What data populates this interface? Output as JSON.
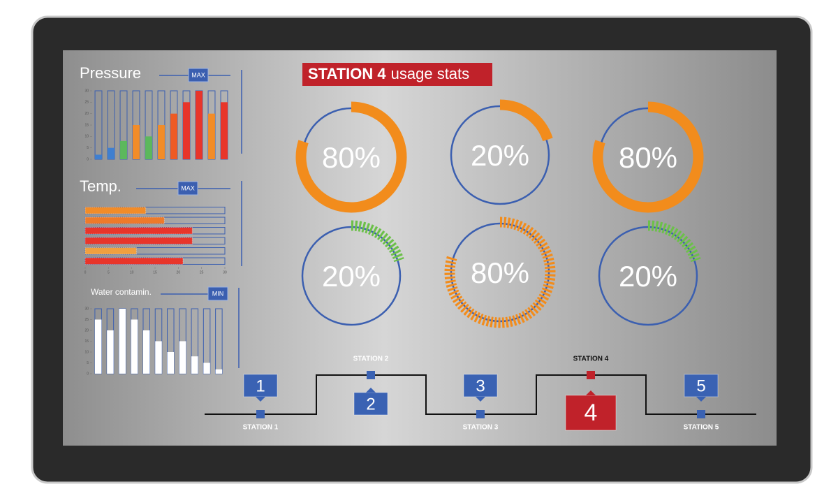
{
  "chart_data": [
    {
      "type": "bar",
      "title": "Pressure",
      "badge": "MAX",
      "categories": [
        null,
        null,
        null,
        null,
        null,
        null,
        null,
        null,
        null,
        null,
        null
      ],
      "values": [
        2,
        5,
        8,
        15,
        10,
        15,
        20,
        25,
        30,
        20,
        25
      ],
      "colors": [
        "#3f7fd0",
        "#3f7fd0",
        "#5cb85c",
        "#f28c28",
        "#5cb85c",
        "#f28c28",
        "#ee5a24",
        "#e8352a",
        "#e8352a",
        "#f28c28",
        "#e8352a"
      ],
      "ylim": [
        0,
        30
      ],
      "yticks": [
        0,
        5,
        10,
        15,
        20,
        25,
        30
      ]
    },
    {
      "type": "bar",
      "orientation": "horizontal",
      "title": "Temp.",
      "badge": "MAX",
      "categories": [
        null,
        null,
        null,
        null,
        null,
        null
      ],
      "values": [
        13,
        17,
        23,
        23,
        11,
        21
      ],
      "colors": [
        "#f28c28",
        "#ee7a2a",
        "#e8352a",
        "#e8352a",
        "#f0a040",
        "#e8352a"
      ],
      "xlim": [
        0,
        30
      ],
      "xticks": [
        0,
        5,
        10,
        15,
        20,
        25,
        30
      ]
    },
    {
      "type": "bar",
      "title": "Water contamin.",
      "badge": "MIN",
      "categories": [
        null,
        null,
        null,
        null,
        null,
        null,
        null,
        null,
        null,
        null,
        null
      ],
      "values": [
        25,
        20,
        30,
        25,
        20,
        15,
        10,
        15,
        8,
        5,
        2
      ],
      "color": "#ffffff",
      "ylim": [
        0,
        30
      ],
      "yticks": [
        0,
        5,
        10,
        15,
        20,
        25,
        30
      ]
    },
    {
      "type": "donut",
      "values": [
        80,
        20,
        80,
        20,
        80,
        20
      ],
      "value_labels": [
        "80%",
        "20%",
        "80%",
        "20%",
        "80%",
        "20%"
      ],
      "colors": [
        "#f28c1c",
        "#f28c1c",
        "#f28c1c",
        "#6cc04a",
        "#f28c1c",
        "#6cc04a"
      ],
      "segmented": [
        false,
        false,
        false,
        true,
        true,
        true
      ]
    }
  ],
  "header": {
    "title_bold": "STATION 4",
    "title_rest": "usage stats"
  },
  "stations": [
    {
      "number": "1",
      "label": "STATION 1",
      "color": "#3a62b3"
    },
    {
      "number": "2",
      "label": "STATION 2",
      "color": "#3a62b3"
    },
    {
      "number": "3",
      "label": "STATION 3",
      "color": "#3a62b3"
    },
    {
      "number": "4",
      "label": "STATION 4",
      "color": "#c0222a"
    },
    {
      "number": "5",
      "label": "STATION 5",
      "color": "#3a62b3"
    }
  ]
}
